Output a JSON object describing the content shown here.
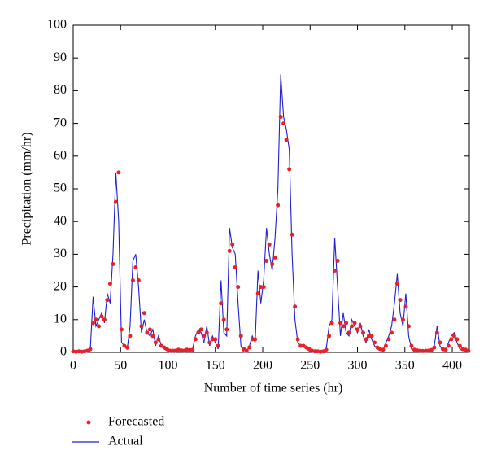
{
  "chart_data": {
    "type": "line",
    "x_label": "Number of time series (hr)",
    "y_label": "Precipitation (mm/hr)",
    "x": [
      0,
      3,
      6,
      9,
      12,
      15,
      18,
      21,
      24,
      27,
      30,
      33,
      36,
      39,
      42,
      45,
      48,
      51,
      54,
      57,
      60,
      63,
      66,
      69,
      72,
      75,
      78,
      81,
      84,
      87,
      90,
      93,
      96,
      99,
      102,
      105,
      108,
      111,
      114,
      117,
      120,
      123,
      126,
      129,
      132,
      135,
      138,
      141,
      144,
      147,
      150,
      153,
      156,
      159,
      162,
      165,
      168,
      171,
      174,
      177,
      180,
      183,
      186,
      189,
      192,
      195,
      198,
      201,
      204,
      207,
      210,
      213,
      216,
      219,
      222,
      225,
      228,
      231,
      234,
      237,
      240,
      243,
      246,
      249,
      252,
      255,
      258,
      261,
      264,
      267,
      270,
      273,
      276,
      279,
      282,
      285,
      288,
      291,
      294,
      297,
      300,
      303,
      306,
      309,
      312,
      315,
      318,
      321,
      324,
      327,
      330,
      333,
      336,
      339,
      342,
      345,
      348,
      351,
      354,
      357,
      360,
      363,
      366,
      369,
      372,
      375,
      378,
      381,
      384,
      387,
      390,
      393,
      396,
      399,
      402,
      405,
      408,
      411,
      414,
      417
    ],
    "series": [
      {
        "name": "Forecasted",
        "color": "#e8202a",
        "style": "dots",
        "values": [
          0.3,
          0.2,
          0.3,
          0.2,
          0.3,
          0.5,
          1,
          9,
          10,
          8,
          11,
          10,
          16,
          21,
          27,
          46,
          55,
          7,
          2,
          1.5,
          5,
          22,
          26,
          22,
          8,
          12,
          6,
          7,
          5,
          3,
          4,
          2,
          1.5,
          1,
          0.5,
          0.5,
          0.5,
          0.8,
          0.6,
          0.5,
          0.8,
          0.7,
          0.8,
          4,
          6,
          7,
          5,
          6,
          3,
          4,
          4,
          2,
          15,
          10,
          7,
          31,
          33,
          26,
          20,
          5,
          1,
          0.5,
          1.5,
          4,
          4,
          18,
          20,
          20,
          28,
          33,
          27,
          29,
          45,
          72,
          70,
          65,
          56,
          36,
          14,
          4,
          2,
          2,
          1.5,
          1,
          0.5,
          0.3,
          0.3,
          0.2,
          0.3,
          0.8,
          5,
          9,
          25,
          28,
          9,
          8,
          9,
          6,
          8,
          9,
          7,
          8,
          6,
          4,
          5,
          5,
          3,
          1.5,
          1,
          0.8,
          2,
          4,
          6,
          10,
          21,
          16,
          10,
          14,
          8,
          2,
          0.8,
          0.6,
          0.5,
          0.4,
          0.5,
          0.5,
          0.7,
          1.5,
          6,
          3,
          1,
          0.8,
          2,
          4,
          5,
          4,
          2,
          1,
          0.8,
          0.5
        ]
      },
      {
        "name": "Actual",
        "color": "#1f1fcf",
        "style": "line",
        "values": [
          0,
          0,
          0,
          0,
          0,
          0,
          0.5,
          17,
          8,
          10,
          12,
          9,
          18,
          15,
          30,
          55,
          40,
          3,
          2,
          1,
          8,
          28,
          30,
          20,
          6,
          10,
          6,
          5,
          7,
          2,
          5,
          2,
          1,
          0.5,
          0,
          0.5,
          0.5,
          0.5,
          0.5,
          0.5,
          0.5,
          0.5,
          1,
          5,
          7,
          6,
          3,
          8,
          2,
          5,
          3,
          1,
          22,
          6,
          5,
          38,
          32,
          30,
          15,
          2,
          0,
          0,
          2,
          5,
          3,
          25,
          15,
          22,
          38,
          30,
          25,
          35,
          50,
          85,
          72,
          68,
          62,
          30,
          10,
          3,
          2,
          2,
          1,
          0.5,
          0,
          0,
          0,
          0,
          0,
          1,
          8,
          10,
          35,
          20,
          5,
          12,
          6,
          5,
          10,
          8,
          6,
          9,
          5,
          3,
          7,
          4,
          2,
          1,
          0.5,
          0.5,
          3,
          5,
          8,
          15,
          24,
          12,
          8,
          18,
          5,
          1,
          0.5,
          0.5,
          0.5,
          0.5,
          0.5,
          0.5,
          0.5,
          2,
          8,
          2,
          0.5,
          0.5,
          3,
          5,
          6,
          3,
          1,
          0.5,
          0.5,
          0
        ]
      }
    ],
    "xlim": [
      0,
      418
    ],
    "ylim": [
      0,
      100
    ],
    "xticks": [
      0,
      50,
      100,
      150,
      200,
      250,
      300,
      350,
      400
    ],
    "yticks": [
      0,
      10,
      20,
      30,
      40,
      50,
      60,
      70,
      80,
      90,
      100
    ]
  }
}
